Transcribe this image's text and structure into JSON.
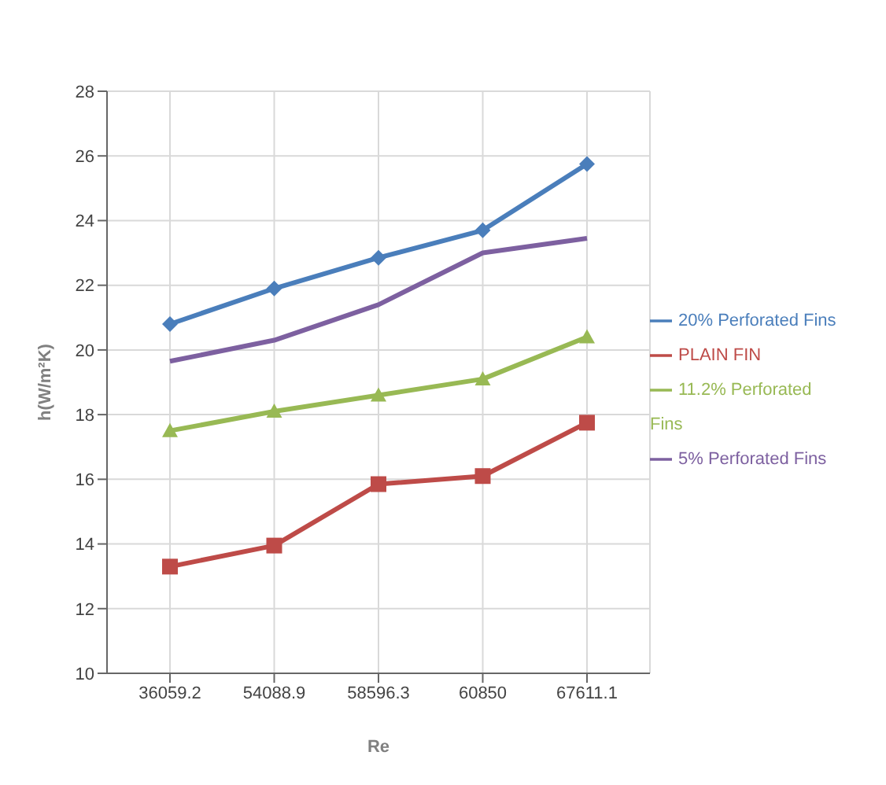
{
  "chart_data": {
    "type": "line",
    "xlabel": "Re",
    "ylabel": "h(W/m²K)",
    "categories": [
      "36059.2",
      "54088.9",
      "58596.3",
      "60850",
      "67611.1"
    ],
    "series": [
      {
        "name": "20% Perforated Fins",
        "color": "#4a7ebb",
        "marker": "diamond",
        "values": [
          20.8,
          21.9,
          22.85,
          23.7,
          25.75
        ]
      },
      {
        "name": "PLAIN FIN",
        "color": "#be4b48",
        "marker": "square",
        "values": [
          13.3,
          13.95,
          15.85,
          16.1,
          17.75
        ]
      },
      {
        "name": "11.2% Perforated Fins",
        "color": "#98b954",
        "marker": "triangle",
        "values": [
          17.5,
          18.1,
          18.6,
          19.1,
          20.4
        ]
      },
      {
        "name": "5% Perforated Fins",
        "color": "#7d60a0",
        "marker": "none",
        "values": [
          19.65,
          20.3,
          21.4,
          23.0,
          23.45
        ]
      }
    ],
    "ylim": [
      10,
      28
    ],
    "yticks": [
      10,
      12,
      14,
      16,
      18,
      20,
      22,
      24,
      26,
      28
    ],
    "grid": true,
    "legend": "right"
  }
}
